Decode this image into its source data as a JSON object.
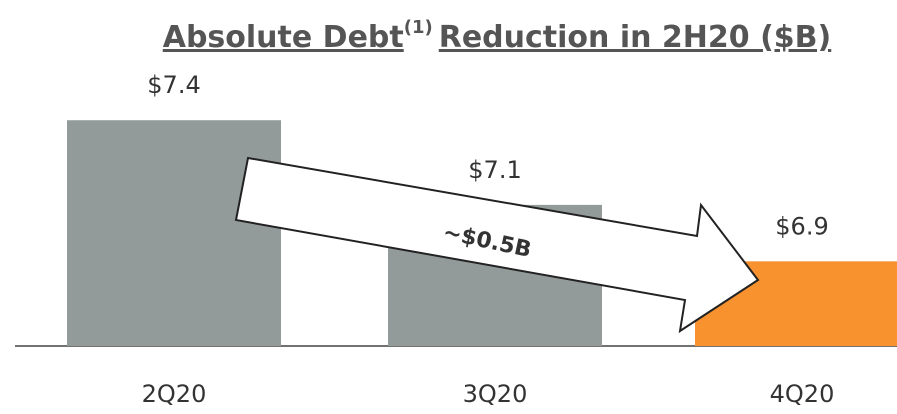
{
  "chart_data": {
    "type": "bar",
    "title": "Absolute Debt",
    "title_note": "(1)",
    "title_rest": "Reduction in 2H20 ($B)",
    "categories": [
      "2Q20",
      "3Q20",
      "4Q20"
    ],
    "values": [
      7.4,
      7.1,
      6.9
    ],
    "value_labels": [
      "$7.4",
      "$7.1",
      "$6.9"
    ],
    "colors": [
      "#939a9a",
      "#939a9a",
      "#f7922f"
    ],
    "ylim": [
      6.6,
      7.5
    ],
    "annotation": "~$0.5B"
  }
}
